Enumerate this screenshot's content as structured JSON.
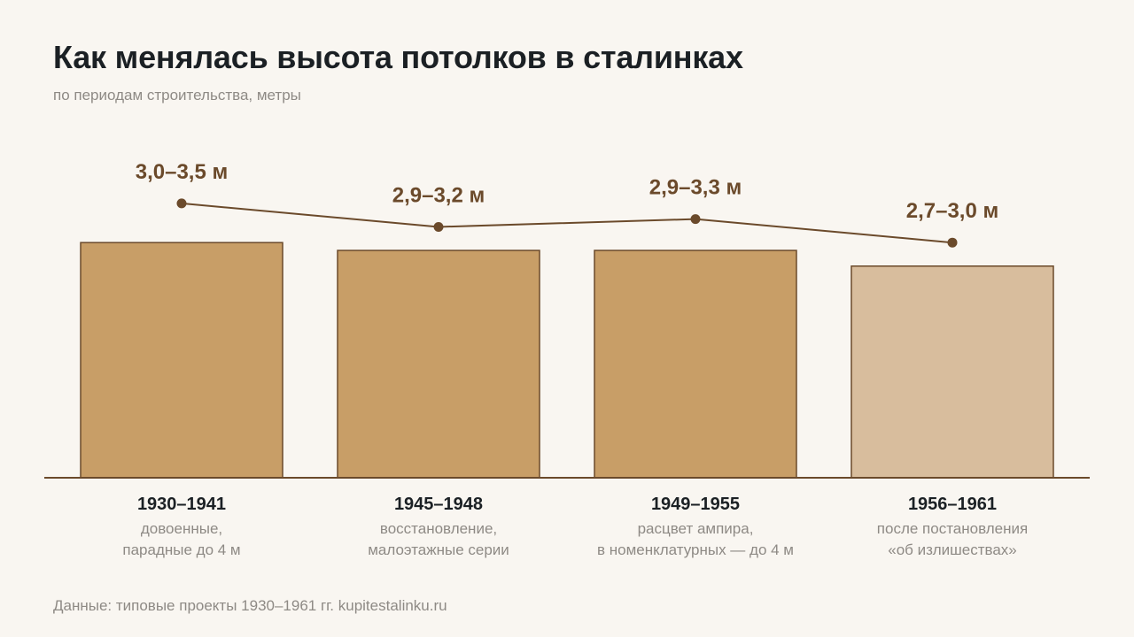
{
  "header": {
    "title": "Как менялась высота потолков в сталинках",
    "subtitle": "по периодам строительства, метры"
  },
  "footer": {
    "source": "Данные: типовые проекты 1930–1961 гг. kupitestalinku.ru"
  },
  "colors": {
    "bar": "#c89e67",
    "bar_light": "#d8bd9d",
    "bar_stroke": "#6b4a2b",
    "line": "#6b4a2b",
    "value_label": "#6b4a2b",
    "category_label": "#1b2024",
    "note_label": "#8e8a85",
    "baseline": "#6b4a2b"
  },
  "chart_data": {
    "type": "bar",
    "categories": [
      "1930–1941",
      "1945–1948",
      "1949–1955",
      "1956–1961"
    ],
    "notes": [
      [
        "довоенные,",
        "парадные до 4 м"
      ],
      [
        "восстановление,",
        "малоэтажные серии"
      ],
      [
        "расцвет ампира,",
        "в номенклатурных — до 4 м"
      ],
      [
        "после постановления",
        "«об излишествах»"
      ]
    ],
    "ranges": [
      [
        3.0,
        3.5
      ],
      [
        2.9,
        3.2
      ],
      [
        2.9,
        3.3
      ],
      [
        2.7,
        3.0
      ]
    ],
    "range_labels": [
      "3,0–3,5 м",
      "2,9–3,2 м",
      "2,9–3,3 м",
      "2,7–3,0 м"
    ],
    "highlight": [
      false,
      false,
      false,
      true
    ],
    "ylim": [
      0,
      3.6
    ],
    "overlay": "line through range upper bounds",
    "grid": false,
    "legend": "none"
  }
}
